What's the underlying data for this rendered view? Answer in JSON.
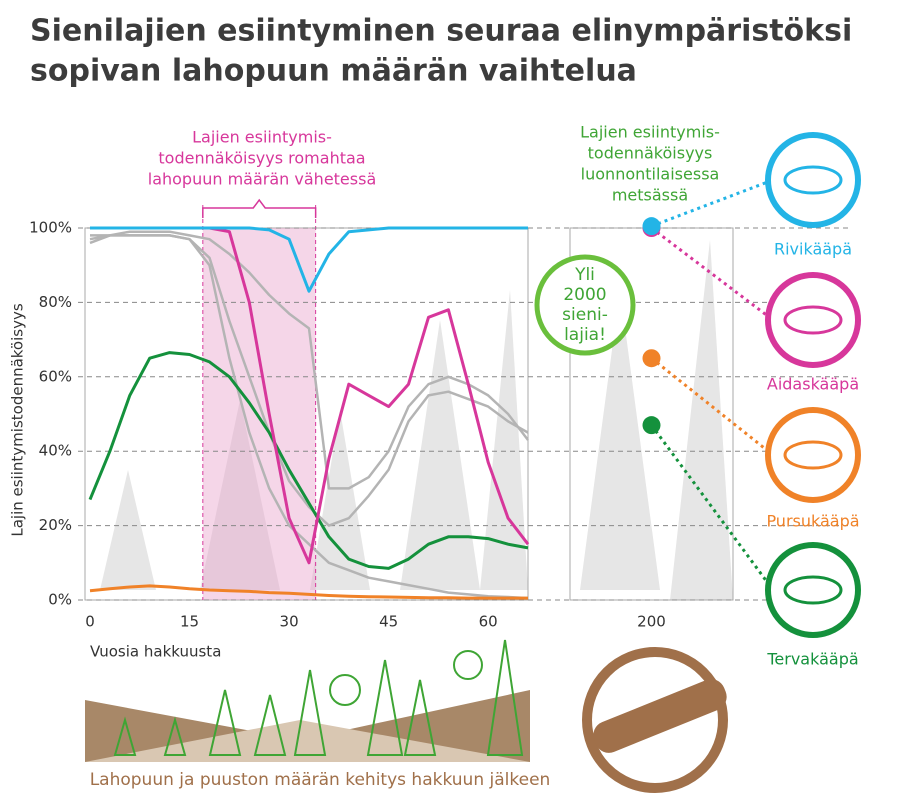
{
  "chart_data": {
    "type": "line",
    "title": [
      "Sienilajien esiintyminen seuraa elinympäristöksi",
      "sopivan lahopuun määrän vaihtelua"
    ],
    "y_label": "Lajin esiintymistodennäköisyys",
    "x_label": "Vuosia hakkuusta",
    "bottom_label": "Lahopuun ja puuston määrän kehitys hakkuun jälkeen",
    "annotations": {
      "collapse": [
        "Lajien esiintymis-",
        "todennäköisyys romahtaa",
        "lahopuun määrän vähetessä"
      ],
      "natural": [
        "Lajien esiintymis-",
        "todennäköisyys",
        "luonnontilaisessa",
        "metsässä"
      ],
      "badge": [
        "Yli",
        "2000",
        "sieni-",
        "lajia!"
      ]
    },
    "highlight_x": [
      17,
      34
    ],
    "xlim": [
      0,
      66
    ],
    "xticks": [
      0,
      15,
      30,
      45,
      60
    ],
    "ylim": [
      0,
      100
    ],
    "yticks": [
      {
        "value": 0,
        "label": "0%"
      },
      {
        "value": 20,
        "label": "20%"
      },
      {
        "value": 40,
        "label": "40%"
      },
      {
        "value": 60,
        "label": "60%"
      },
      {
        "value": 80,
        "label": "80%"
      },
      {
        "value": 100,
        "label": "100%"
      }
    ],
    "grid": true,
    "forest": {
      "xlim": [
        190,
        210
      ],
      "xticks": [
        200
      ],
      "x": 200
    },
    "x": [
      0,
      3,
      6,
      9,
      12,
      15,
      18,
      21,
      24,
      27,
      30,
      33,
      36,
      39,
      42,
      45,
      48,
      51,
      54,
      57,
      60,
      63,
      66
    ],
    "series": [
      {
        "color": "#b4b4b4",
        "values": [
          97,
          98,
          99,
          99,
          99,
          98,
          97,
          93,
          88,
          82,
          77,
          73,
          30,
          30,
          33,
          40,
          52,
          58,
          60,
          58,
          55,
          50,
          43
        ]
      },
      {
        "color": "#b4b4b4",
        "values": [
          96,
          98,
          98,
          98,
          98,
          97,
          92,
          75,
          60,
          45,
          32,
          25,
          20,
          22,
          28,
          35,
          48,
          55,
          56,
          54,
          52,
          48,
          45
        ]
      },
      {
        "color": "#b4b4b4",
        "values": [
          98,
          98,
          98,
          98,
          98,
          97,
          90,
          65,
          45,
          30,
          20,
          15,
          10,
          8,
          6,
          5,
          4,
          3,
          2,
          1.5,
          1,
          0.8,
          0.5
        ]
      },
      {
        "name": "Tervakääpä",
        "color": "#14913c",
        "forest_value": 47,
        "values": [
          27,
          40,
          55,
          65,
          66.5,
          66,
          64,
          60,
          53,
          45,
          35,
          26,
          17,
          11,
          9,
          8.5,
          11,
          15,
          17,
          17,
          16.5,
          15,
          14
        ]
      },
      {
        "name": "Pursukääpä",
        "color": "#f08228",
        "forest_value": 65,
        "values": [
          2.5,
          3,
          3.5,
          3.8,
          3.5,
          3,
          2.7,
          2.5,
          2.3,
          2,
          1.8,
          1.5,
          1.2,
          1,
          0.9,
          0.8,
          0.7,
          0.6,
          0.6,
          0.5,
          0.5,
          0.5,
          0.5
        ]
      },
      {
        "name": "Aidaskääpä",
        "color": "#d7379b",
        "forest_value": 100,
        "values": [
          100,
          100,
          100,
          100,
          100,
          100,
          100,
          99,
          80,
          50,
          22,
          10,
          38,
          58,
          55,
          52,
          58,
          76,
          78,
          58,
          37,
          22,
          15
        ]
      },
      {
        "name": "Rivikääpä",
        "color": "#23b4e6",
        "forest_value": 100.5,
        "values": [
          100,
          100,
          100,
          100,
          100,
          100,
          100,
          100,
          100,
          99.5,
          97,
          83,
          93,
          99,
          99.5,
          100,
          100,
          100,
          100,
          100,
          100,
          100,
          100
        ]
      }
    ]
  }
}
